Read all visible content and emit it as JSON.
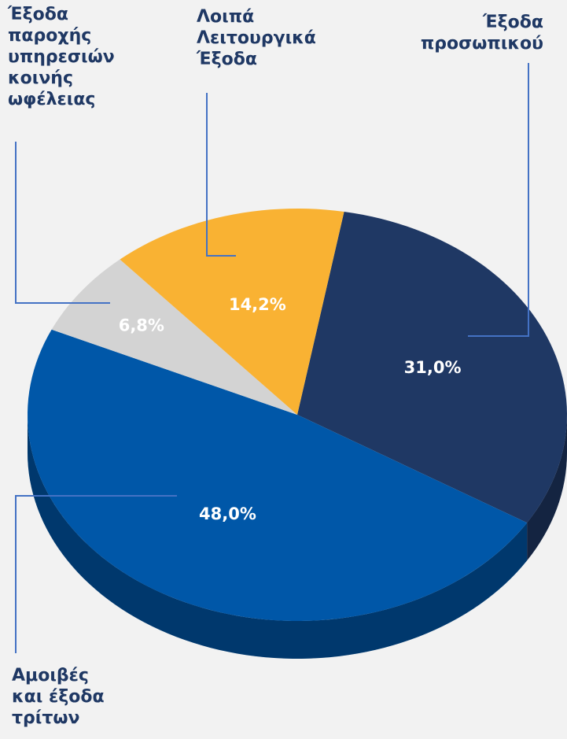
{
  "chart_data": {
    "type": "pie",
    "categories": [
      "Έξοδα προσωπικού",
      "Αμοιβές και έξοδα τρίτων",
      "Έξοδα παροχής υπηρεσιών κοινής ωφέλειας",
      "Λοιπά Λειτουργικά Έξοδα"
    ],
    "values": [
      31.0,
      48.0,
      6.8,
      14.2
    ],
    "value_labels": [
      "31,0%",
      "48,0%",
      "6,8%",
      "14,2%"
    ],
    "colors": [
      "#1f3864",
      "#0057a8",
      "#d3d3d3",
      "#f9b233"
    ]
  }
}
